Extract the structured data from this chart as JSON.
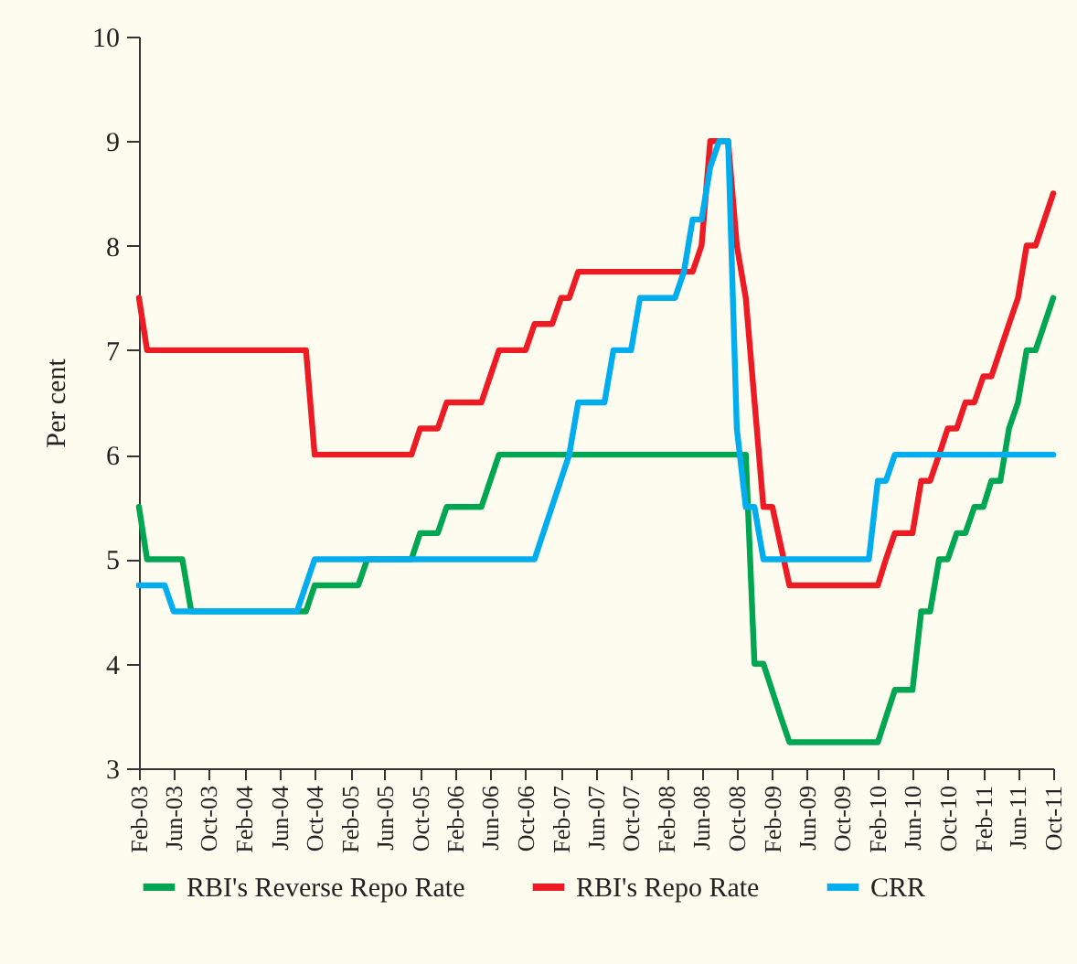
{
  "chart_data": {
    "type": "line",
    "ylabel": "Per cent",
    "xlim": [
      "2003-02",
      "2011-10"
    ],
    "xticks": [
      {
        "value": "2003-02",
        "label": "Feb-03"
      },
      {
        "value": "2003-06",
        "label": "Jun-03"
      },
      {
        "value": "2003-10",
        "label": "Oct-03"
      },
      {
        "value": "2004-02",
        "label": "Feb-04"
      },
      {
        "value": "2004-06",
        "label": "Jun-04"
      },
      {
        "value": "2004-10",
        "label": "Oct-04"
      },
      {
        "value": "2005-02",
        "label": "Feb-05"
      },
      {
        "value": "2005-06",
        "label": "Jun-05"
      },
      {
        "value": "2005-10",
        "label": "Oct-05"
      },
      {
        "value": "2006-02",
        "label": "Feb-06"
      },
      {
        "value": "2006-06",
        "label": "Jun-06"
      },
      {
        "value": "2006-10",
        "label": "Oct-06"
      },
      {
        "value": "2007-02",
        "label": "Feb-07"
      },
      {
        "value": "2007-06",
        "label": "Jun-07"
      },
      {
        "value": "2007-10",
        "label": "Oct-07"
      },
      {
        "value": "2008-02",
        "label": "Feb-08"
      },
      {
        "value": "2008-06",
        "label": "Jun-08"
      },
      {
        "value": "2008-10",
        "label": "Oct-08"
      },
      {
        "value": "2009-02",
        "label": "Feb-09"
      },
      {
        "value": "2009-06",
        "label": "Jun-09"
      },
      {
        "value": "2009-10",
        "label": "Oct-09"
      },
      {
        "value": "2010-02",
        "label": "Feb-10"
      },
      {
        "value": "2010-06",
        "label": "Jun-10"
      },
      {
        "value": "2010-10",
        "label": "Oct-10"
      },
      {
        "value": "2011-02",
        "label": "Feb-11"
      },
      {
        "value": "2011-06",
        "label": "Jun-11"
      },
      {
        "value": "2011-10",
        "label": "Oct-11"
      }
    ],
    "ylim": [
      3,
      10
    ],
    "yticks": [
      3,
      4,
      5,
      6,
      7,
      8,
      9,
      10
    ],
    "grid": false,
    "legend": "bottom",
    "line_style": "solid",
    "marker": "none",
    "series": [
      {
        "name": "RBI's Reverse Repo Rate",
        "color": "#00a651",
        "x": [
          "2003-02",
          "2003-03",
          "2003-07",
          "2003-08",
          "2004-09",
          "2004-10",
          "2005-03",
          "2005-04",
          "2005-09",
          "2005-10",
          "2005-12",
          "2006-01",
          "2006-05",
          "2006-07",
          "2008-11",
          "2008-12",
          "2009-01",
          "2009-03",
          "2009-04",
          "2010-02",
          "2010-04",
          "2010-06",
          "2010-07",
          "2010-08",
          "2010-09",
          "2010-10",
          "2010-11",
          "2010-12",
          "2011-01",
          "2011-02",
          "2011-03",
          "2011-04",
          "2011-05",
          "2011-06",
          "2011-07",
          "2011-08",
          "2011-10"
        ],
        "values": [
          5.5,
          5.0,
          5.0,
          4.5,
          4.5,
          4.75,
          4.75,
          5.0,
          5.0,
          5.25,
          5.25,
          5.5,
          5.5,
          6.0,
          6.0,
          4.0,
          4.0,
          3.5,
          3.25,
          3.25,
          3.75,
          3.75,
          4.5,
          4.5,
          5.0,
          5.0,
          5.25,
          5.25,
          5.5,
          5.5,
          5.75,
          5.75,
          6.25,
          6.5,
          7.0,
          7.0,
          7.5
        ]
      },
      {
        "name": "RBI's Repo Rate",
        "color": "#ed1c24",
        "x": [
          "2003-02",
          "2003-03",
          "2004-09",
          "2004-10",
          "2005-09",
          "2005-10",
          "2005-12",
          "2006-01",
          "2006-05",
          "2006-07",
          "2006-10",
          "2006-11",
          "2007-01",
          "2007-02",
          "2007-03",
          "2007-04",
          "2008-05",
          "2008-06",
          "2008-07",
          "2008-09",
          "2008-10",
          "2008-11",
          "2009-01",
          "2009-02",
          "2009-04",
          "2010-02",
          "2010-03",
          "2010-04",
          "2010-06",
          "2010-07",
          "2010-08",
          "2010-09",
          "2010-10",
          "2010-11",
          "2010-12",
          "2011-01",
          "2011-02",
          "2011-03",
          "2011-05",
          "2011-06",
          "2011-07",
          "2011-08",
          "2011-10"
        ],
        "values": [
          7.5,
          7.0,
          7.0,
          6.0,
          6.0,
          6.25,
          6.25,
          6.5,
          6.5,
          7.0,
          7.0,
          7.25,
          7.25,
          7.5,
          7.5,
          7.75,
          7.75,
          8.0,
          9.0,
          9.0,
          8.0,
          7.5,
          5.5,
          5.5,
          4.75,
          4.75,
          5.0,
          5.25,
          5.25,
          5.75,
          5.75,
          6.0,
          6.25,
          6.25,
          6.5,
          6.5,
          6.75,
          6.75,
          7.25,
          7.5,
          8.0,
          8.0,
          8.5
        ]
      },
      {
        "name": "CRR",
        "color": "#00aeef",
        "x": [
          "2003-02",
          "2003-05",
          "2003-06",
          "2004-08",
          "2004-10",
          "2006-11",
          "2007-03",
          "2007-04",
          "2007-07",
          "2007-08",
          "2007-10",
          "2007-11",
          "2008-03",
          "2008-04",
          "2008-05",
          "2008-06",
          "2008-07",
          "2008-08",
          "2008-09",
          "2008-10",
          "2008-11",
          "2008-12",
          "2009-01",
          "2010-01",
          "2010-02",
          "2010-03",
          "2010-04",
          "2011-10"
        ],
        "values": [
          4.75,
          4.75,
          4.5,
          4.5,
          5.0,
          5.0,
          6.0,
          6.5,
          6.5,
          7.0,
          7.0,
          7.5,
          7.5,
          7.75,
          8.25,
          8.25,
          8.75,
          9.0,
          9.0,
          6.25,
          5.5,
          5.5,
          5.0,
          5.0,
          5.75,
          5.75,
          6.0,
          6.0
        ]
      }
    ]
  }
}
